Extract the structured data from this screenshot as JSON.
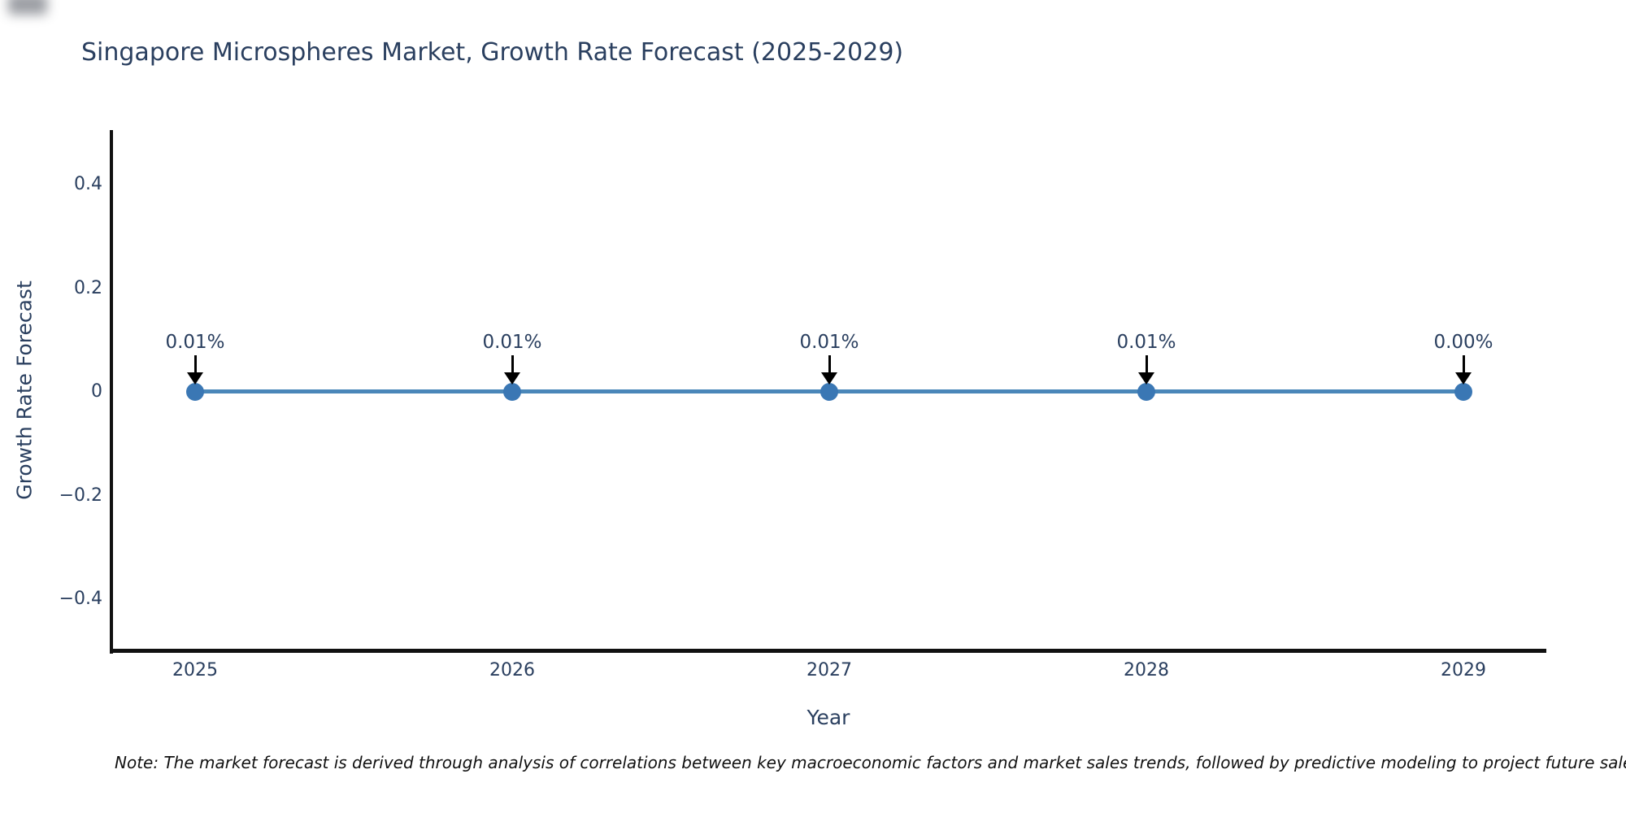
{
  "title": "Singapore Microspheres Market, Growth Rate Forecast (2025-2029)",
  "note": "Note: The market forecast is derived through analysis of correlations between key macroeconomic factors and market sales trends, followed by predictive modeling to project future sales",
  "colors": {
    "background": "#ffffff",
    "text": "#2a3f5f",
    "axis": "#111111",
    "line": "#4a87b9",
    "marker": "#3a77b4",
    "arrow": "#000000"
  },
  "chart_data": {
    "type": "line",
    "title": "Singapore Microspheres Market, Growth Rate Forecast (2025-2029)",
    "x": [
      2025,
      2026,
      2027,
      2028,
      2029
    ],
    "xtick_labels": [
      "2025",
      "2026",
      "2027",
      "2028",
      "2029"
    ],
    "series": [
      {
        "name": "Growth Rate Forecast",
        "values": [
          0.01,
          0.01,
          0.01,
          0.01,
          0.0
        ],
        "unit": "%"
      }
    ],
    "point_labels": [
      "0.01%",
      "0.01%",
      "0.01%",
      "0.01%",
      "0.00%"
    ],
    "xlabel": "Year",
    "ylabel": "Growth Rate Forecast",
    "ylim": [
      -0.5,
      0.5
    ],
    "yticks": [
      0.4,
      0.2,
      0,
      -0.2,
      -0.4
    ],
    "ytick_labels": [
      "0.4",
      "0.2",
      "0",
      "−0.2",
      "−0.4"
    ],
    "grid": false,
    "legend": "none",
    "annotation_style": "black-arrow-pointing-down-to-each-point",
    "note": "Note: The market forecast is derived through analysis of correlations between key macroeconomic factors and market sales trends, followed by predictive modeling to project future sales"
  }
}
